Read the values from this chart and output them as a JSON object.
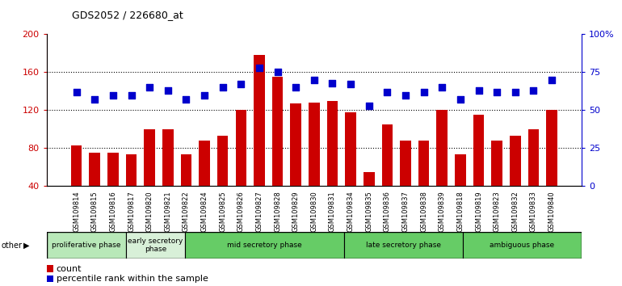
{
  "title": "GDS2052 / 226680_at",
  "samples": [
    "GSM109814",
    "GSM109815",
    "GSM109816",
    "GSM109817",
    "GSM109820",
    "GSM109821",
    "GSM109822",
    "GSM109824",
    "GSM109825",
    "GSM109826",
    "GSM109827",
    "GSM109828",
    "GSM109829",
    "GSM109830",
    "GSM109831",
    "GSM109834",
    "GSM109835",
    "GSM109836",
    "GSM109837",
    "GSM109838",
    "GSM109839",
    "GSM109818",
    "GSM109819",
    "GSM109823",
    "GSM109832",
    "GSM109833",
    "GSM109840"
  ],
  "counts": [
    83,
    75,
    75,
    73,
    100,
    100,
    73,
    88,
    93,
    120,
    178,
    155,
    127,
    128,
    130,
    118,
    55,
    105,
    88,
    88,
    120,
    73,
    115,
    88,
    93,
    100,
    120
  ],
  "percentiles": [
    62,
    57,
    60,
    60,
    65,
    63,
    57,
    60,
    65,
    67,
    78,
    75,
    65,
    70,
    68,
    67,
    53,
    62,
    60,
    62,
    65,
    57,
    63,
    62,
    62,
    63,
    70
  ],
  "phases": [
    {
      "label": "proliferative phase",
      "start": 0,
      "end": 4,
      "color": "#b8e8b8"
    },
    {
      "label": "early secretory\nphase",
      "start": 4,
      "end": 7,
      "color": "#d8f0d8"
    },
    {
      "label": "mid secretory phase",
      "start": 7,
      "end": 15,
      "color": "#66cc66"
    },
    {
      "label": "late secretory phase",
      "start": 15,
      "end": 21,
      "color": "#66cc66"
    },
    {
      "label": "ambiguous phase",
      "start": 21,
      "end": 27,
      "color": "#66cc66"
    }
  ],
  "bar_color": "#CC0000",
  "dot_color": "#0000CC",
  "ylim_left": [
    40,
    200
  ],
  "ylim_right": [
    0,
    100
  ],
  "yticks_left": [
    40,
    80,
    120,
    160,
    200
  ],
  "yticks_right": [
    0,
    25,
    50,
    75,
    100
  ],
  "ytick_labels_right": [
    "0",
    "25",
    "50",
    "75",
    "100%"
  ],
  "dot_size": 40,
  "figsize": [
    7.7,
    3.54
  ],
  "dpi": 100
}
